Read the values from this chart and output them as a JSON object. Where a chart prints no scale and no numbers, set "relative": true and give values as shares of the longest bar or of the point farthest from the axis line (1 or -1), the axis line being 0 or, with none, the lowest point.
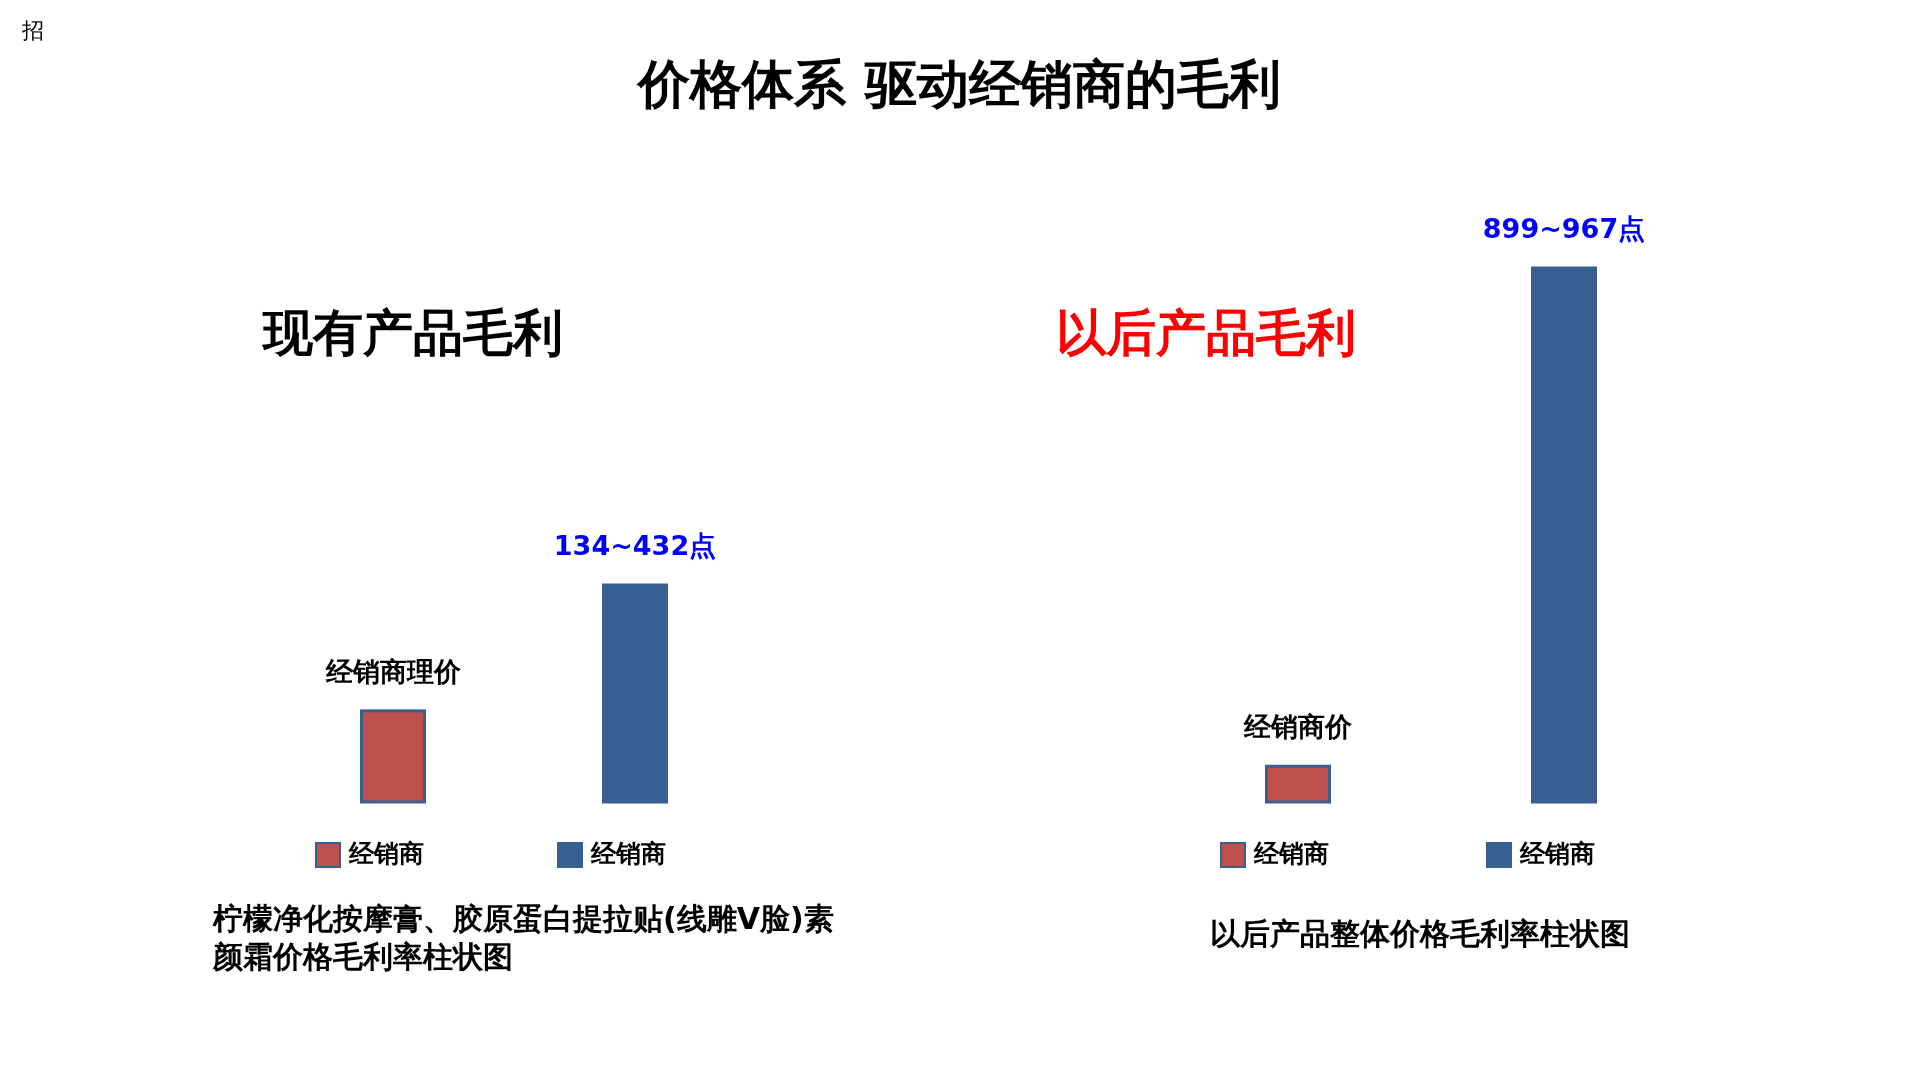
{
  "chart_data": [
    {
      "type": "bar",
      "title": "价格体系 驱动经销商的毛利",
      "subtitle": "现有产品毛利",
      "relative": true,
      "categories": [
        "经销商",
        "经销商"
      ],
      "values": [
        0.42,
        1
      ],
      "colors": [
        "#c0504d",
        "#376092"
      ],
      "annotations": [
        "经销商理价",
        "134~432点",
        "招",
        "柠檬净化按摩膏、胶原蛋白提拉贴(线雕V脸)素颜霜价格毛利率柱状图"
      ]
    },
    {
      "type": "bar",
      "subtitle": "以后产品毛利",
      "relative": true,
      "categories": [
        "经销商",
        "经销商"
      ],
      "values": [
        0.067,
        1
      ],
      "colors": [
        "#c0504d",
        "#376092"
      ],
      "annotations": [
        "经销商价",
        "899~967点",
        "以后产品整体价格毛利率柱状图"
      ]
    }
  ]
}
